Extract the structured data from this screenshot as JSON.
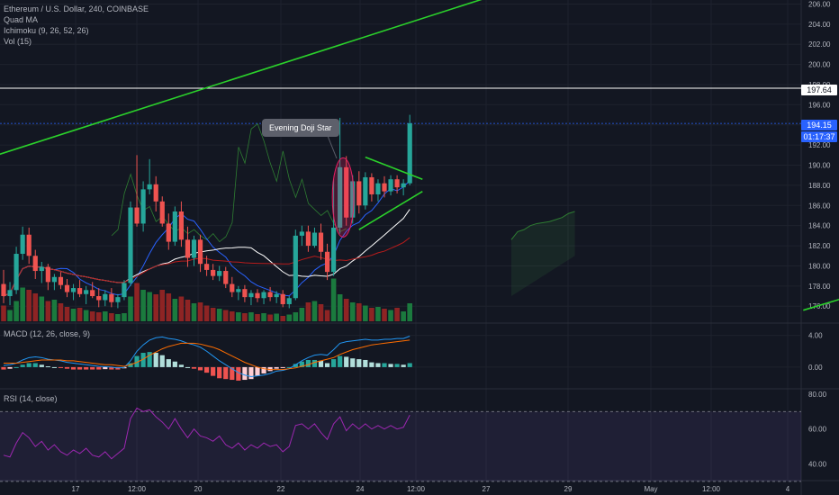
{
  "legend": {
    "title": "Ethereum / U.S. Dollar, 240, COINBASE",
    "indicators": [
      "Quad MA",
      "Ichimoku (9, 26, 52, 26)",
      "Vol (15)"
    ]
  },
  "annotation": "Evening Doji Star",
  "price_tags": {
    "horizontal_line": "197.64",
    "last_price": "194.15",
    "countdown": "01:17:37"
  },
  "colors": {
    "background": "#131722",
    "up": "#26a69a",
    "down": "#ef5350",
    "trendline": "#2bd12b",
    "price_line": "#2962ff",
    "rsi": "#9c27b0",
    "macd": "#2196f3",
    "signal": "#ff6d00"
  },
  "chart_data": [
    {
      "type": "candlestick",
      "title": "Ethereum / U.S. Dollar, 240, COINBASE",
      "x_tick_labels": [
        "17",
        "12:00",
        "20",
        "22",
        "24",
        "12:00",
        "27",
        "29",
        "May",
        "12:00",
        "4"
      ],
      "y_tick_labels": [
        "206.00",
        "204.00",
        "202.00",
        "200.00",
        "198.00",
        "196.00",
        "194.00",
        "192.00",
        "190.00",
        "188.00",
        "186.00",
        "184.00",
        "182.00",
        "180.00",
        "178.00",
        "176.00"
      ],
      "ylim": [
        174.5,
        206.4
      ],
      "horizontal_line": 197.64,
      "last_price": 194.15,
      "candles": [
        {
          "o": 178.2,
          "h": 179.6,
          "l": 176.3,
          "c": 177.0
        },
        {
          "o": 177.0,
          "h": 178.4,
          "l": 176.1,
          "c": 177.6
        },
        {
          "o": 177.6,
          "h": 181.9,
          "l": 177.2,
          "c": 181.2
        },
        {
          "o": 181.2,
          "h": 183.9,
          "l": 180.6,
          "c": 183.1
        },
        {
          "o": 183.1,
          "h": 183.8,
          "l": 180.2,
          "c": 181.0
        },
        {
          "o": 181.0,
          "h": 181.6,
          "l": 178.7,
          "c": 179.5
        },
        {
          "o": 179.5,
          "h": 180.4,
          "l": 178.3,
          "c": 179.9
        },
        {
          "o": 179.9,
          "h": 180.2,
          "l": 177.6,
          "c": 178.4
        },
        {
          "o": 178.4,
          "h": 179.2,
          "l": 177.6,
          "c": 178.9
        },
        {
          "o": 178.9,
          "h": 179.4,
          "l": 177.7,
          "c": 178.1
        },
        {
          "o": 178.1,
          "h": 178.7,
          "l": 176.9,
          "c": 177.4
        },
        {
          "o": 177.4,
          "h": 178.2,
          "l": 176.6,
          "c": 177.8
        },
        {
          "o": 177.8,
          "h": 178.6,
          "l": 176.9,
          "c": 177.2
        },
        {
          "o": 177.2,
          "h": 178.0,
          "l": 176.2,
          "c": 177.6
        },
        {
          "o": 177.6,
          "h": 178.4,
          "l": 176.8,
          "c": 177.0
        },
        {
          "o": 177.0,
          "h": 177.8,
          "l": 175.9,
          "c": 176.6
        },
        {
          "o": 176.6,
          "h": 177.6,
          "l": 176.0,
          "c": 177.2
        },
        {
          "o": 177.2,
          "h": 177.8,
          "l": 175.9,
          "c": 176.4
        },
        {
          "o": 176.4,
          "h": 177.2,
          "l": 175.8,
          "c": 176.9
        },
        {
          "o": 176.9,
          "h": 178.6,
          "l": 176.6,
          "c": 178.3
        },
        {
          "o": 178.3,
          "h": 186.4,
          "l": 178.0,
          "c": 185.8
        },
        {
          "o": 185.8,
          "h": 191.0,
          "l": 183.9,
          "c": 184.2
        },
        {
          "o": 184.2,
          "h": 188.4,
          "l": 183.4,
          "c": 187.6
        },
        {
          "o": 187.6,
          "h": 190.6,
          "l": 187.1,
          "c": 188.1
        },
        {
          "o": 188.1,
          "h": 188.9,
          "l": 185.4,
          "c": 186.4
        },
        {
          "o": 186.4,
          "h": 186.9,
          "l": 183.9,
          "c": 184.2
        },
        {
          "o": 184.2,
          "h": 185.2,
          "l": 181.6,
          "c": 182.4
        },
        {
          "o": 182.4,
          "h": 185.9,
          "l": 182.0,
          "c": 185.4
        },
        {
          "o": 185.4,
          "h": 186.4,
          "l": 181.9,
          "c": 182.6
        },
        {
          "o": 182.6,
          "h": 183.9,
          "l": 179.9,
          "c": 180.8
        },
        {
          "o": 180.8,
          "h": 183.0,
          "l": 180.0,
          "c": 182.6
        },
        {
          "o": 182.6,
          "h": 183.1,
          "l": 179.4,
          "c": 180.2
        },
        {
          "o": 180.2,
          "h": 181.0,
          "l": 179.0,
          "c": 179.6
        },
        {
          "o": 179.6,
          "h": 180.2,
          "l": 178.6,
          "c": 179.0
        },
        {
          "o": 179.0,
          "h": 180.0,
          "l": 178.5,
          "c": 179.5
        },
        {
          "o": 179.5,
          "h": 179.9,
          "l": 177.8,
          "c": 178.2
        },
        {
          "o": 178.2,
          "h": 178.9,
          "l": 176.9,
          "c": 177.4
        },
        {
          "o": 177.4,
          "h": 178.0,
          "l": 176.6,
          "c": 177.7
        },
        {
          "o": 177.7,
          "h": 178.1,
          "l": 176.4,
          "c": 176.9
        },
        {
          "o": 176.9,
          "h": 177.6,
          "l": 176.1,
          "c": 177.3
        },
        {
          "o": 177.3,
          "h": 177.7,
          "l": 176.4,
          "c": 176.8
        },
        {
          "o": 176.8,
          "h": 177.6,
          "l": 176.2,
          "c": 177.4
        },
        {
          "o": 177.4,
          "h": 177.9,
          "l": 176.5,
          "c": 176.9
        },
        {
          "o": 176.9,
          "h": 177.5,
          "l": 176.3,
          "c": 177.2
        },
        {
          "o": 177.2,
          "h": 177.6,
          "l": 175.9,
          "c": 176.2
        },
        {
          "o": 176.2,
          "h": 177.0,
          "l": 175.8,
          "c": 176.8
        },
        {
          "o": 176.8,
          "h": 183.6,
          "l": 176.6,
          "c": 183.0
        },
        {
          "o": 183.0,
          "h": 184.0,
          "l": 182.0,
          "c": 183.4
        },
        {
          "o": 183.4,
          "h": 184.0,
          "l": 181.4,
          "c": 182.0
        },
        {
          "o": 182.0,
          "h": 183.8,
          "l": 181.8,
          "c": 183.3
        },
        {
          "o": 183.3,
          "h": 184.2,
          "l": 180.6,
          "c": 181.4
        },
        {
          "o": 181.4,
          "h": 182.2,
          "l": 178.6,
          "c": 179.4
        },
        {
          "o": 179.4,
          "h": 188.6,
          "l": 179.0,
          "c": 183.8
        },
        {
          "o": 183.8,
          "h": 194.7,
          "l": 183.2,
          "c": 189.8
        },
        {
          "o": 189.8,
          "h": 190.9,
          "l": 184.0,
          "c": 184.8
        },
        {
          "o": 184.8,
          "h": 189.0,
          "l": 184.2,
          "c": 188.4
        },
        {
          "o": 188.4,
          "h": 189.4,
          "l": 185.2,
          "c": 186.0
        },
        {
          "o": 186.0,
          "h": 189.3,
          "l": 185.6,
          "c": 188.8
        },
        {
          "o": 188.8,
          "h": 189.2,
          "l": 186.4,
          "c": 187.1
        },
        {
          "o": 187.1,
          "h": 188.6,
          "l": 186.4,
          "c": 188.2
        },
        {
          "o": 188.2,
          "h": 188.9,
          "l": 186.8,
          "c": 187.4
        },
        {
          "o": 187.4,
          "h": 189.0,
          "l": 187.0,
          "c": 188.6
        },
        {
          "o": 188.6,
          "h": 189.0,
          "l": 187.2,
          "c": 187.8
        },
        {
          "o": 187.8,
          "h": 188.6,
          "l": 187.0,
          "c": 188.2
        },
        {
          "o": 188.2,
          "h": 195.0,
          "l": 188.0,
          "c": 194.15
        }
      ],
      "volume": [
        0.35,
        0.25,
        0.45,
        0.75,
        0.7,
        0.62,
        0.55,
        0.45,
        0.48,
        0.4,
        0.32,
        0.28,
        0.3,
        0.25,
        0.22,
        0.2,
        0.22,
        0.18,
        0.16,
        0.18,
        0.55,
        0.85,
        0.7,
        0.65,
        0.6,
        0.7,
        0.62,
        0.5,
        0.55,
        0.48,
        0.4,
        0.42,
        0.35,
        0.3,
        0.28,
        0.25,
        0.22,
        0.2,
        0.18,
        0.2,
        0.16,
        0.18,
        0.15,
        0.17,
        0.12,
        0.15,
        0.2,
        0.3,
        0.42,
        0.45,
        0.38,
        0.25,
        0.95,
        0.6,
        0.5,
        0.42,
        0.4,
        0.35,
        0.3,
        0.32,
        0.28,
        0.25,
        0.3,
        0.22,
        0.4
      ],
      "trendlines": [
        {
          "from": {
            "t": -6,
            "p": 190.0
          },
          "to": {
            "t": 77,
            "p": 206.8
          }
        },
        {
          "from": {
            "t": 57,
            "p": 190.8
          },
          "to": {
            "t": 66,
            "p": 188.6
          }
        },
        {
          "from": {
            "t": 56,
            "p": 183.6
          },
          "to": {
            "t": 66,
            "p": 187.4
          }
        },
        {
          "from": {
            "t": 126,
            "p": 175.6
          },
          "to": {
            "t": 162,
            "p": 182.4
          }
        }
      ]
    },
    {
      "type": "line",
      "title": "MACD (12, 26, close, 9)",
      "y_tick_labels": [
        "4.00",
        "0.00"
      ],
      "ylim": [
        -2.5,
        5.2
      ],
      "series": [
        {
          "name": "MACD",
          "values": [
            0.2,
            0.3,
            0.5,
            0.9,
            1.2,
            1.3,
            1.2,
            1.0,
            0.9,
            0.8,
            0.6,
            0.5,
            0.4,
            0.3,
            0.2,
            0.1,
            0.05,
            0.0,
            -0.1,
            -0.05,
            0.8,
            2.0,
            2.8,
            3.4,
            3.7,
            3.8,
            3.6,
            3.5,
            3.3,
            3.0,
            2.8,
            2.5,
            2.0,
            1.4,
            0.8,
            0.3,
            -0.2,
            -0.7,
            -1.0,
            -1.2,
            -1.1,
            -1.0,
            -0.8,
            -0.5,
            -0.4,
            -0.2,
            0.3,
            0.8,
            1.2,
            1.5,
            1.6,
            1.5,
            2.2,
            3.0,
            3.2,
            3.3,
            3.4,
            3.5,
            3.4,
            3.4,
            3.5,
            3.5,
            3.6,
            3.6,
            3.9
          ]
        },
        {
          "name": "Signal",
          "values": [
            0.5,
            0.5,
            0.5,
            0.6,
            0.7,
            0.8,
            0.9,
            0.9,
            0.9,
            0.9,
            0.8,
            0.8,
            0.7,
            0.6,
            0.5,
            0.4,
            0.3,
            0.3,
            0.2,
            0.1,
            0.3,
            0.6,
            1.0,
            1.5,
            1.9,
            2.3,
            2.6,
            2.8,
            3.0,
            3.0,
            3.0,
            2.9,
            2.7,
            2.5,
            2.2,
            1.8,
            1.4,
            1.0,
            0.6,
            0.3,
            0.0,
            -0.2,
            -0.3,
            -0.3,
            -0.3,
            -0.2,
            -0.1,
            0.1,
            0.3,
            0.6,
            0.8,
            1.0,
            1.2,
            1.6,
            1.9,
            2.2,
            2.4,
            2.6,
            2.8,
            2.9,
            3.0,
            3.1,
            3.2,
            3.3,
            3.4
          ]
        }
      ],
      "histogram": [
        -0.3,
        -0.2,
        0.0,
        0.3,
        0.5,
        0.5,
        0.3,
        0.1,
        0.0,
        -0.1,
        -0.2,
        -0.3,
        -0.3,
        -0.3,
        -0.3,
        -0.3,
        -0.25,
        -0.3,
        -0.3,
        -0.15,
        0.5,
        1.4,
        1.8,
        1.9,
        1.8,
        1.5,
        1.0,
        0.7,
        0.3,
        0.0,
        -0.2,
        -0.4,
        -0.7,
        -1.1,
        -1.4,
        -1.5,
        -1.6,
        -1.7,
        -1.6,
        -1.5,
        -1.1,
        -0.8,
        -0.5,
        -0.2,
        -0.1,
        0.0,
        0.4,
        0.7,
        0.9,
        0.9,
        0.8,
        0.5,
        1.0,
        1.4,
        1.3,
        1.1,
        1.0,
        0.9,
        0.6,
        0.5,
        0.5,
        0.4,
        0.4,
        0.3,
        0.5
      ]
    },
    {
      "type": "line",
      "title": "RSI (14, close)",
      "y_tick_labels": [
        "80.00",
        "60.00",
        "40.00"
      ],
      "ylim": [
        31,
        82
      ],
      "bands": [
        30,
        70
      ],
      "series": [
        {
          "name": "RSI",
          "values": [
            45,
            44,
            52,
            58,
            55,
            50,
            53,
            48,
            51,
            47,
            45,
            48,
            46,
            49,
            45,
            44,
            47,
            43,
            46,
            49,
            66,
            72,
            70,
            71,
            67,
            64,
            60,
            66,
            60,
            55,
            60,
            56,
            55,
            53,
            56,
            51,
            49,
            52,
            48,
            51,
            49,
            52,
            50,
            51,
            47,
            50,
            62,
            63,
            60,
            63,
            58,
            54,
            63,
            67,
            59,
            63,
            60,
            63,
            60,
            62,
            60,
            62,
            60,
            61,
            68
          ]
        }
      ]
    }
  ]
}
